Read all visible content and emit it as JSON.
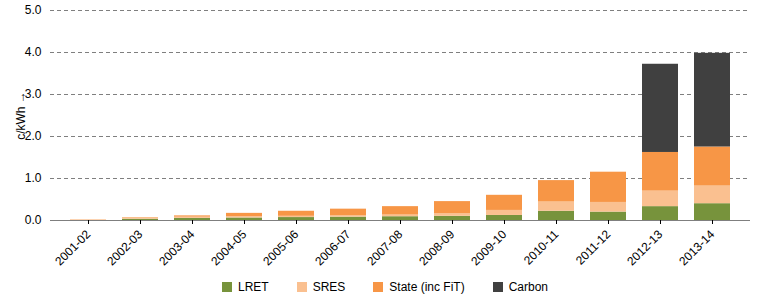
{
  "chart_data": {
    "type": "bar",
    "stacked": true,
    "y_label": "c/kWh",
    "categories": [
      "2001-02",
      "2002-03",
      "2003-04",
      "2004-05",
      "2005-06",
      "2006-07",
      "2007-08",
      "2008-09",
      "2009-10",
      "2010-11",
      "2011-12",
      "2012-13",
      "2013-14"
    ],
    "series": [
      {
        "name": "LRET",
        "color": "#77933c",
        "values": [
          0,
          0.03,
          0.05,
          0.06,
          0.07,
          0.08,
          0.09,
          0.1,
          0.12,
          0.22,
          0.2,
          0.33,
          0.4
        ]
      },
      {
        "name": "SRES",
        "color": "#fac090",
        "values": [
          0,
          0.03,
          0.03,
          0.03,
          0.03,
          0.03,
          0.04,
          0.06,
          0.12,
          0.22,
          0.23,
          0.37,
          0.42
        ]
      },
      {
        "name": "State (inc FiT)",
        "color": "#f79646",
        "values": [
          0.01,
          0.01,
          0.03,
          0.08,
          0.12,
          0.16,
          0.2,
          0.29,
          0.36,
          0.51,
          0.72,
          0.92,
          0.93
        ]
      },
      {
        "name": "Carbon",
        "color": "#404040",
        "values": [
          0,
          0,
          0,
          0,
          0,
          0,
          0,
          0,
          0,
          0,
          0,
          2.1,
          2.23
        ]
      }
    ],
    "ylim": [
      0,
      5
    ],
    "yticks": [
      0,
      1,
      2,
      3,
      4,
      5
    ],
    "grid": true,
    "legend": "bottom"
  }
}
